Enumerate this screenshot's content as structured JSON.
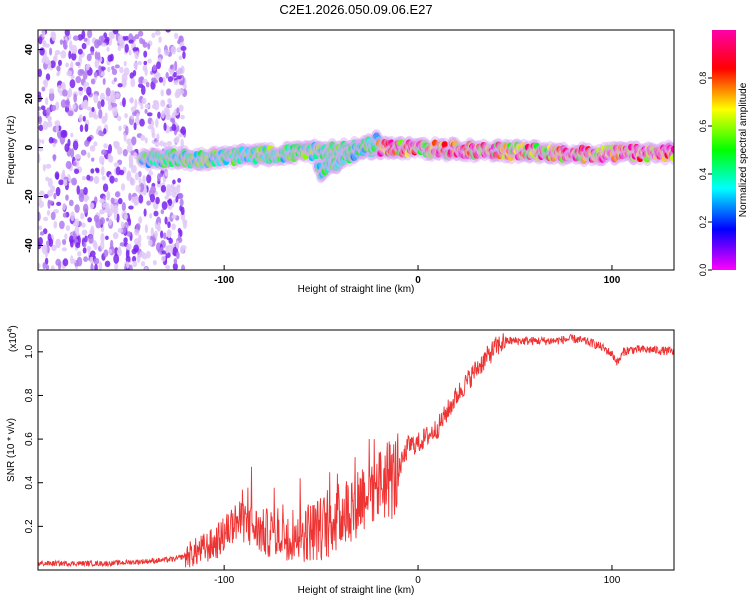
{
  "title": "C2E1.2026.050.09.06.E27",
  "chart_data": [
    {
      "type": "heatmap",
      "title": "C2E1.2026.050.09.06.E27",
      "xlabel": "Height of straight line (km)",
      "ylabel": "Frequency (Hz)",
      "xlim": [
        -196,
        132
      ],
      "ylim": [
        -50,
        48
      ],
      "xticks": [
        -100,
        0,
        100
      ],
      "xtick_labels": [
        "-100",
        "0",
        "100"
      ],
      "yticks": [
        -40,
        -20,
        0,
        20,
        40
      ],
      "ytick_labels": [
        "-40",
        "-20",
        "0",
        "20",
        "40"
      ],
      "colorbar": {
        "label": "Normalized spectral amplitude",
        "range": [
          0,
          1
        ],
        "ticks": [
          0,
          0.2,
          0.4,
          0.6,
          0.8
        ],
        "tick_labels": [
          "0.0",
          "0.2",
          "0.4",
          "0.6",
          "0.8"
        ],
        "colors": [
          "#ff00ff",
          "#0000ff",
          "#00ffff",
          "#00ff00",
          "#ffff00",
          "#ff0000",
          "#ff00aa"
        ]
      },
      "features": [
        {
          "name": "noise",
          "x_range": [
            -196,
            -120
          ],
          "freq_range": [
            -50,
            48
          ],
          "amplitude": 0.15
        },
        {
          "name": "signal",
          "x_range": [
            -143,
            -120
          ],
          "freq_center": [
            -5,
            -4
          ],
          "amplitude": 0.45
        },
        {
          "name": "signal",
          "x_range": [
            -120,
            -20
          ],
          "freq_center": [
            -5,
            0
          ],
          "amplitude": 0.5
        },
        {
          "name": "signal_branch",
          "x_range": [
            -52,
            -20
          ],
          "freq_center": [
            -10,
            3
          ],
          "amplitude": 0.45
        },
        {
          "name": "signal",
          "x_range": [
            -20,
            70
          ],
          "freq_center": [
            0,
            -2
          ],
          "amplitude": 0.85
        },
        {
          "name": "signal",
          "x_range": [
            70,
            132
          ],
          "freq_center": [
            -3,
            -2
          ],
          "amplitude": 0.9
        }
      ]
    },
    {
      "type": "line",
      "xlabel": "Height of straight line (km)",
      "ylabel": "SNR (10 * v/v)",
      "multiplier_label": "(x10",
      "multiplier_exponent": "4",
      "multiplier_close": ")",
      "xlim": [
        -196,
        132
      ],
      "ylim": [
        0,
        1.1
      ],
      "xticks": [
        -100,
        0,
        100
      ],
      "xtick_labels": [
        "-100",
        "0",
        "100"
      ],
      "yticks": [
        0.2,
        0.4,
        0.6,
        0.8,
        1.0
      ],
      "ytick_labels": [
        "0.2",
        "0.4",
        "0.6",
        "0.8",
        "1.0"
      ],
      "color": "#ee3333",
      "series": [
        {
          "name": "SNR",
          "x": [
            -196,
            -180,
            -160,
            -140,
            -125,
            -115,
            -105,
            -100,
            -95,
            -90,
            -80,
            -70,
            -60,
            -50,
            -40,
            -30,
            -25,
            -20,
            -15,
            -12,
            -8,
            -5,
            0,
            10,
            20,
            30,
            40,
            45,
            50,
            60,
            70,
            80,
            90,
            95,
            100,
            103,
            106,
            110,
            120,
            132
          ],
          "values": [
            0.03,
            0.03,
            0.03,
            0.04,
            0.05,
            0.08,
            0.12,
            0.16,
            0.22,
            0.22,
            0.17,
            0.17,
            0.17,
            0.19,
            0.25,
            0.33,
            0.38,
            0.4,
            0.42,
            0.42,
            0.5,
            0.57,
            0.58,
            0.65,
            0.8,
            0.92,
            1.02,
            1.05,
            1.05,
            1.05,
            1.05,
            1.06,
            1.04,
            1.02,
            0.99,
            0.95,
            1.0,
            1.01,
            1.01,
            1.0
          ]
        }
      ]
    }
  ]
}
